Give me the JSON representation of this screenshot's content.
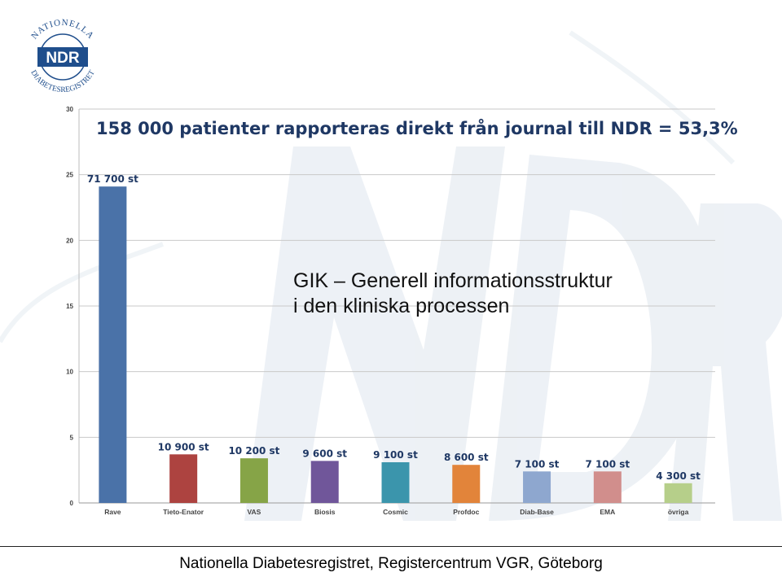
{
  "logo": {
    "top_text": "NATIONELLA",
    "center_text": "NDR",
    "bottom_text": "DIABETESREGISTRET",
    "color": "#1f4e8c"
  },
  "watermark_text": "NDR",
  "overlay": {
    "line1": "GIK – Generell informationsstruktur",
    "line2": "i den kliniska processen"
  },
  "footer": "Nationella Diabetesregistret, Registercentrum VGR, Göteborg",
  "chart_data": {
    "type": "bar",
    "title": "158 000 patienter rapporteras direkt från journal till NDR = 53,3%",
    "categories": [
      "Rave",
      "Tieto-Enator",
      "VAS",
      "Biosis",
      "Cosmic",
      "Profdoc",
      "Diab-Base",
      "EMA",
      "övriga"
    ],
    "values": [
      24.1,
      3.7,
      3.4,
      3.2,
      3.1,
      2.9,
      2.4,
      2.4,
      1.5
    ],
    "data_labels": [
      "71 700 st",
      "10 900 st",
      "10 200 st",
      "9 600 st",
      "9 100 st",
      "8 600 st",
      "7 100 st",
      "7 100 st",
      "4 300 st"
    ],
    "colors": [
      "#4a72a8",
      "#ad4340",
      "#86a447",
      "#70569a",
      "#3b95ac",
      "#e2843a",
      "#8ea7cf",
      "#d18e8c",
      "#b6cf8a"
    ],
    "ylim": [
      0,
      30
    ],
    "yticks": [
      "0",
      "5",
      "10",
      "15",
      "20",
      "25",
      "30"
    ],
    "grid": true,
    "xlabel": "",
    "ylabel": ""
  }
}
